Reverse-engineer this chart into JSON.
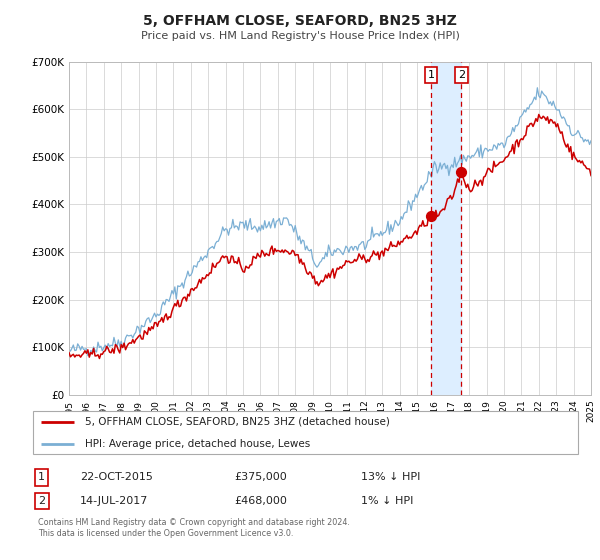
{
  "title": "5, OFFHAM CLOSE, SEAFORD, BN25 3HZ",
  "subtitle": "Price paid vs. HM Land Registry's House Price Index (HPI)",
  "ylim": [
    0,
    700000
  ],
  "xlim": [
    1995,
    2025
  ],
  "background_color": "#ffffff",
  "grid_color": "#cccccc",
  "legend_label_red": "5, OFFHAM CLOSE, SEAFORD, BN25 3HZ (detached house)",
  "legend_label_blue": "HPI: Average price, detached house, Lewes",
  "transaction1_date": "22-OCT-2015",
  "transaction1_price": "£375,000",
  "transaction1_hpi": "13% ↓ HPI",
  "transaction2_date": "14-JUL-2017",
  "transaction2_price": "£468,000",
  "transaction2_hpi": "1% ↓ HPI",
  "footer": "Contains HM Land Registry data © Crown copyright and database right 2024.\nThis data is licensed under the Open Government Licence v3.0.",
  "sale1_x": 2015.81,
  "sale1_y": 375000,
  "sale2_x": 2017.54,
  "sale2_y": 468000,
  "vline1_x": 2015.81,
  "vline2_x": 2017.54,
  "shade_color": "#ddeeff",
  "red_color": "#cc0000",
  "blue_color": "#7bafd4"
}
